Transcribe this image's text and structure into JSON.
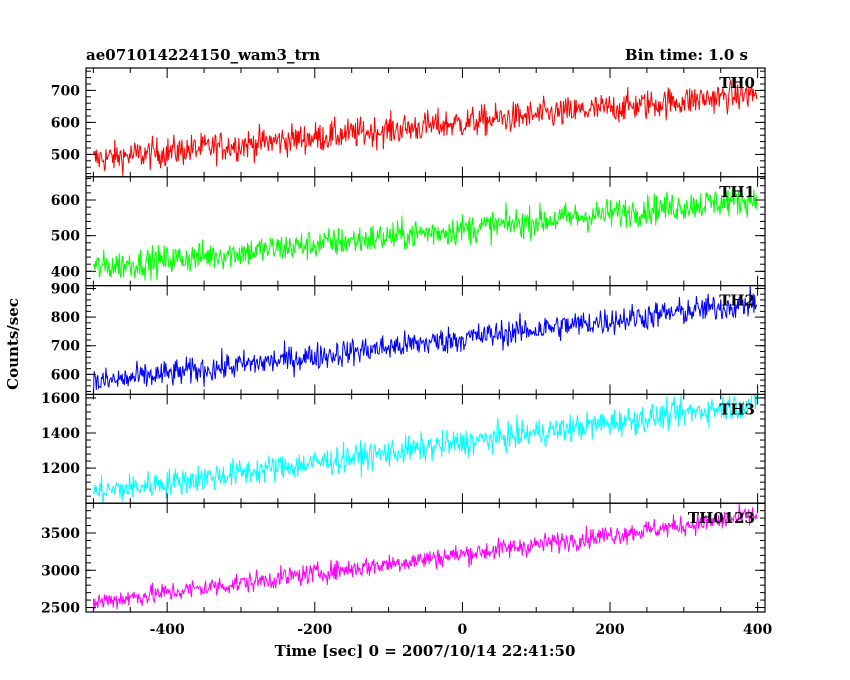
{
  "chart_data": {
    "type": "line",
    "title": "ae071014224150_wam3_trn",
    "bin_time_label": "Bin time: 1.0 s",
    "xlabel": "Time [sec] 0 = 2007/10/14 22:41:50",
    "ylabel": "Counts/sec",
    "xlim": [
      -510,
      410
    ],
    "x_ticks": [
      -400,
      -200,
      0,
      200,
      400
    ],
    "x_range_of_data": [
      -500,
      399
    ],
    "bin_width_sec": 1.0,
    "grid": false,
    "panels": [
      {
        "name": "TH0",
        "color": "#ff0000",
        "ylim": [
          430,
          770
        ],
        "y_ticks": [
          500,
          600,
          700
        ],
        "trend_start": 485,
        "trend_end": 690,
        "noise_amplitude": 45
      },
      {
        "name": "TH1",
        "color": "#00ff00",
        "ylim": [
          360,
          665
        ],
        "y_ticks": [
          400,
          500,
          600
        ],
        "trend_start": 410,
        "trend_end": 605,
        "noise_amplitude": 40
      },
      {
        "name": "TH2",
        "color": "#0000ff",
        "ylim": [
          530,
          910
        ],
        "y_ticks": [
          600,
          700,
          800,
          900
        ],
        "trend_start": 570,
        "trend_end": 850,
        "noise_amplitude": 45
      },
      {
        "name": "TH3",
        "color": "#00ffff",
        "ylim": [
          1000,
          1620
        ],
        "y_ticks": [
          1200,
          1400,
          1600
        ],
        "trend_start": 1060,
        "trend_end": 1570,
        "noise_amplitude": 75
      },
      {
        "name": "TH0123",
        "color": "#ff00ff",
        "ylim": [
          2440,
          3900
        ],
        "y_ticks": [
          2500,
          3000,
          3500
        ],
        "trend_start": 2570,
        "trend_end": 3730,
        "noise_amplitude": 130
      }
    ]
  }
}
